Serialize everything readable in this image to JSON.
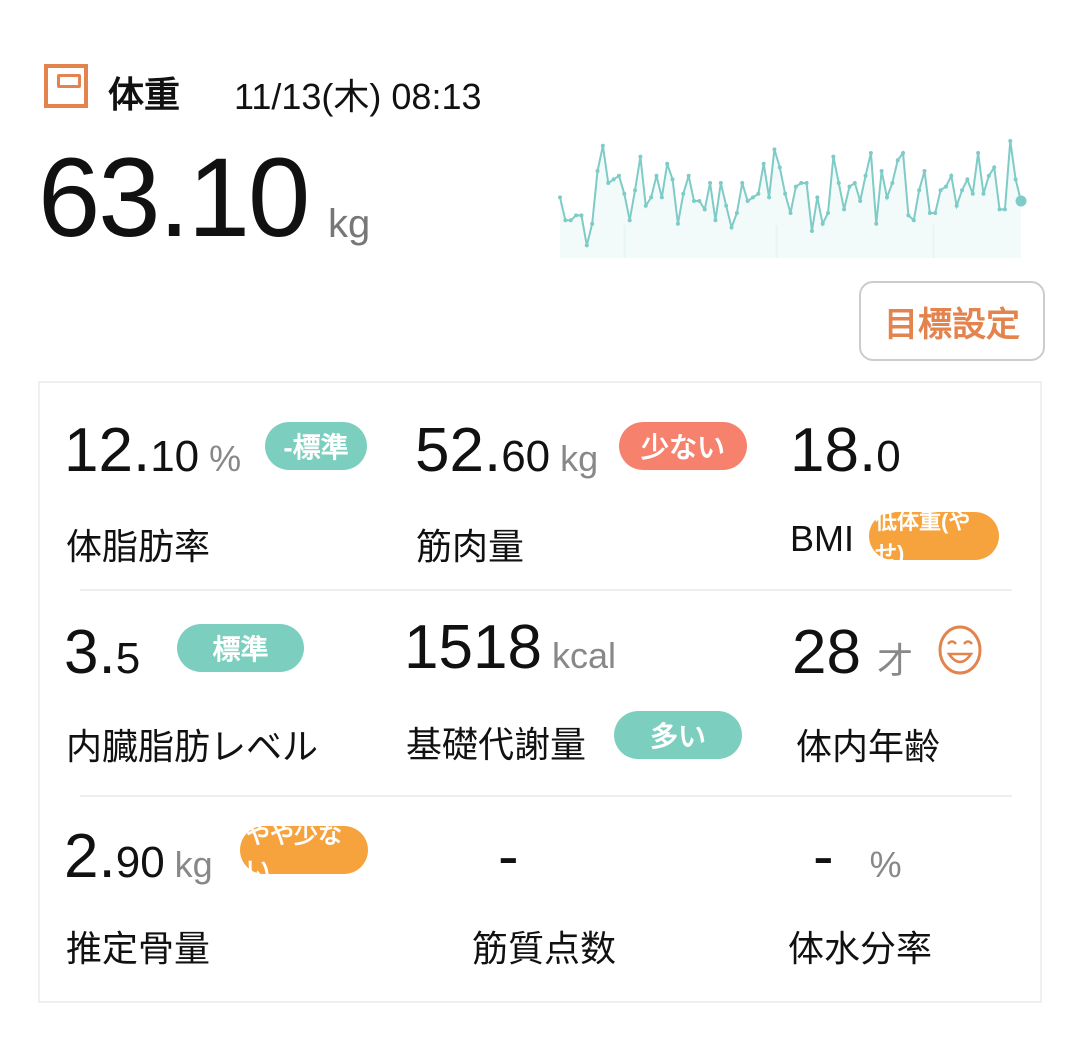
{
  "header": {
    "icon": "scale-icon",
    "title": "体重",
    "datetime": "11/13(木) 08:13"
  },
  "weight": {
    "value": "63.10",
    "unit": "kg"
  },
  "sparkline": {
    "color": "#7ecbc7",
    "relative_values": [
      48,
      29,
      29,
      33,
      33,
      8,
      26,
      70,
      91,
      60,
      63,
      66,
      51,
      29,
      54,
      82,
      41,
      48,
      66,
      48,
      76,
      63,
      26,
      51,
      66,
      45,
      45,
      38,
      60,
      29,
      60,
      41,
      23,
      35,
      60,
      45,
      48,
      51,
      76,
      48,
      88,
      73,
      51,
      35,
      57,
      60,
      60,
      20,
      48,
      26,
      35,
      82,
      60,
      38,
      57,
      60,
      45,
      66,
      85,
      26,
      70,
      48,
      60,
      79,
      85,
      33,
      29,
      54,
      70,
      35,
      35,
      54,
      57,
      66,
      41,
      54,
      63,
      51,
      85,
      51,
      66,
      73,
      38,
      38,
      95,
      63,
      45
    ]
  },
  "goal_button": "目標設定",
  "metrics": [
    {
      "int": "12.",
      "dec": "10",
      "unit": "%",
      "label": "体脂肪率",
      "badge": "-標準",
      "badge_color": "#7ccfbe"
    },
    {
      "int": "52.",
      "dec": "60",
      "unit": "kg",
      "label": "筋肉量",
      "badge": "少ない",
      "badge_color": "#f6826d"
    },
    {
      "int": "18.",
      "dec": "0",
      "unit": "",
      "label": "BMI",
      "badge": "低体重(やせ)",
      "badge_color": "#f7a33d"
    },
    {
      "int": "3.",
      "dec": "5",
      "unit": "",
      "label": "内臓脂肪レベル",
      "badge": "標準",
      "badge_color": "#7ccfbe"
    },
    {
      "int": "1518",
      "dec": "",
      "unit": "kcal",
      "label": "基礎代謝量",
      "badge": "多い",
      "badge_color": "#7ccfbe"
    },
    {
      "int": "28",
      "dec": "",
      "unit": "才",
      "label": "体内年齢",
      "icon": "smile-face-icon"
    },
    {
      "int": "2.",
      "dec": "90",
      "unit": "kg",
      "label": "推定骨量",
      "badge": "やや少ない",
      "badge_color": "#f7a33d"
    },
    {
      "int": "-",
      "dec": "",
      "unit": "",
      "label": "筋質点数"
    },
    {
      "int": "-",
      "dec": "",
      "unit": "%",
      "label": "体水分率"
    }
  ]
}
